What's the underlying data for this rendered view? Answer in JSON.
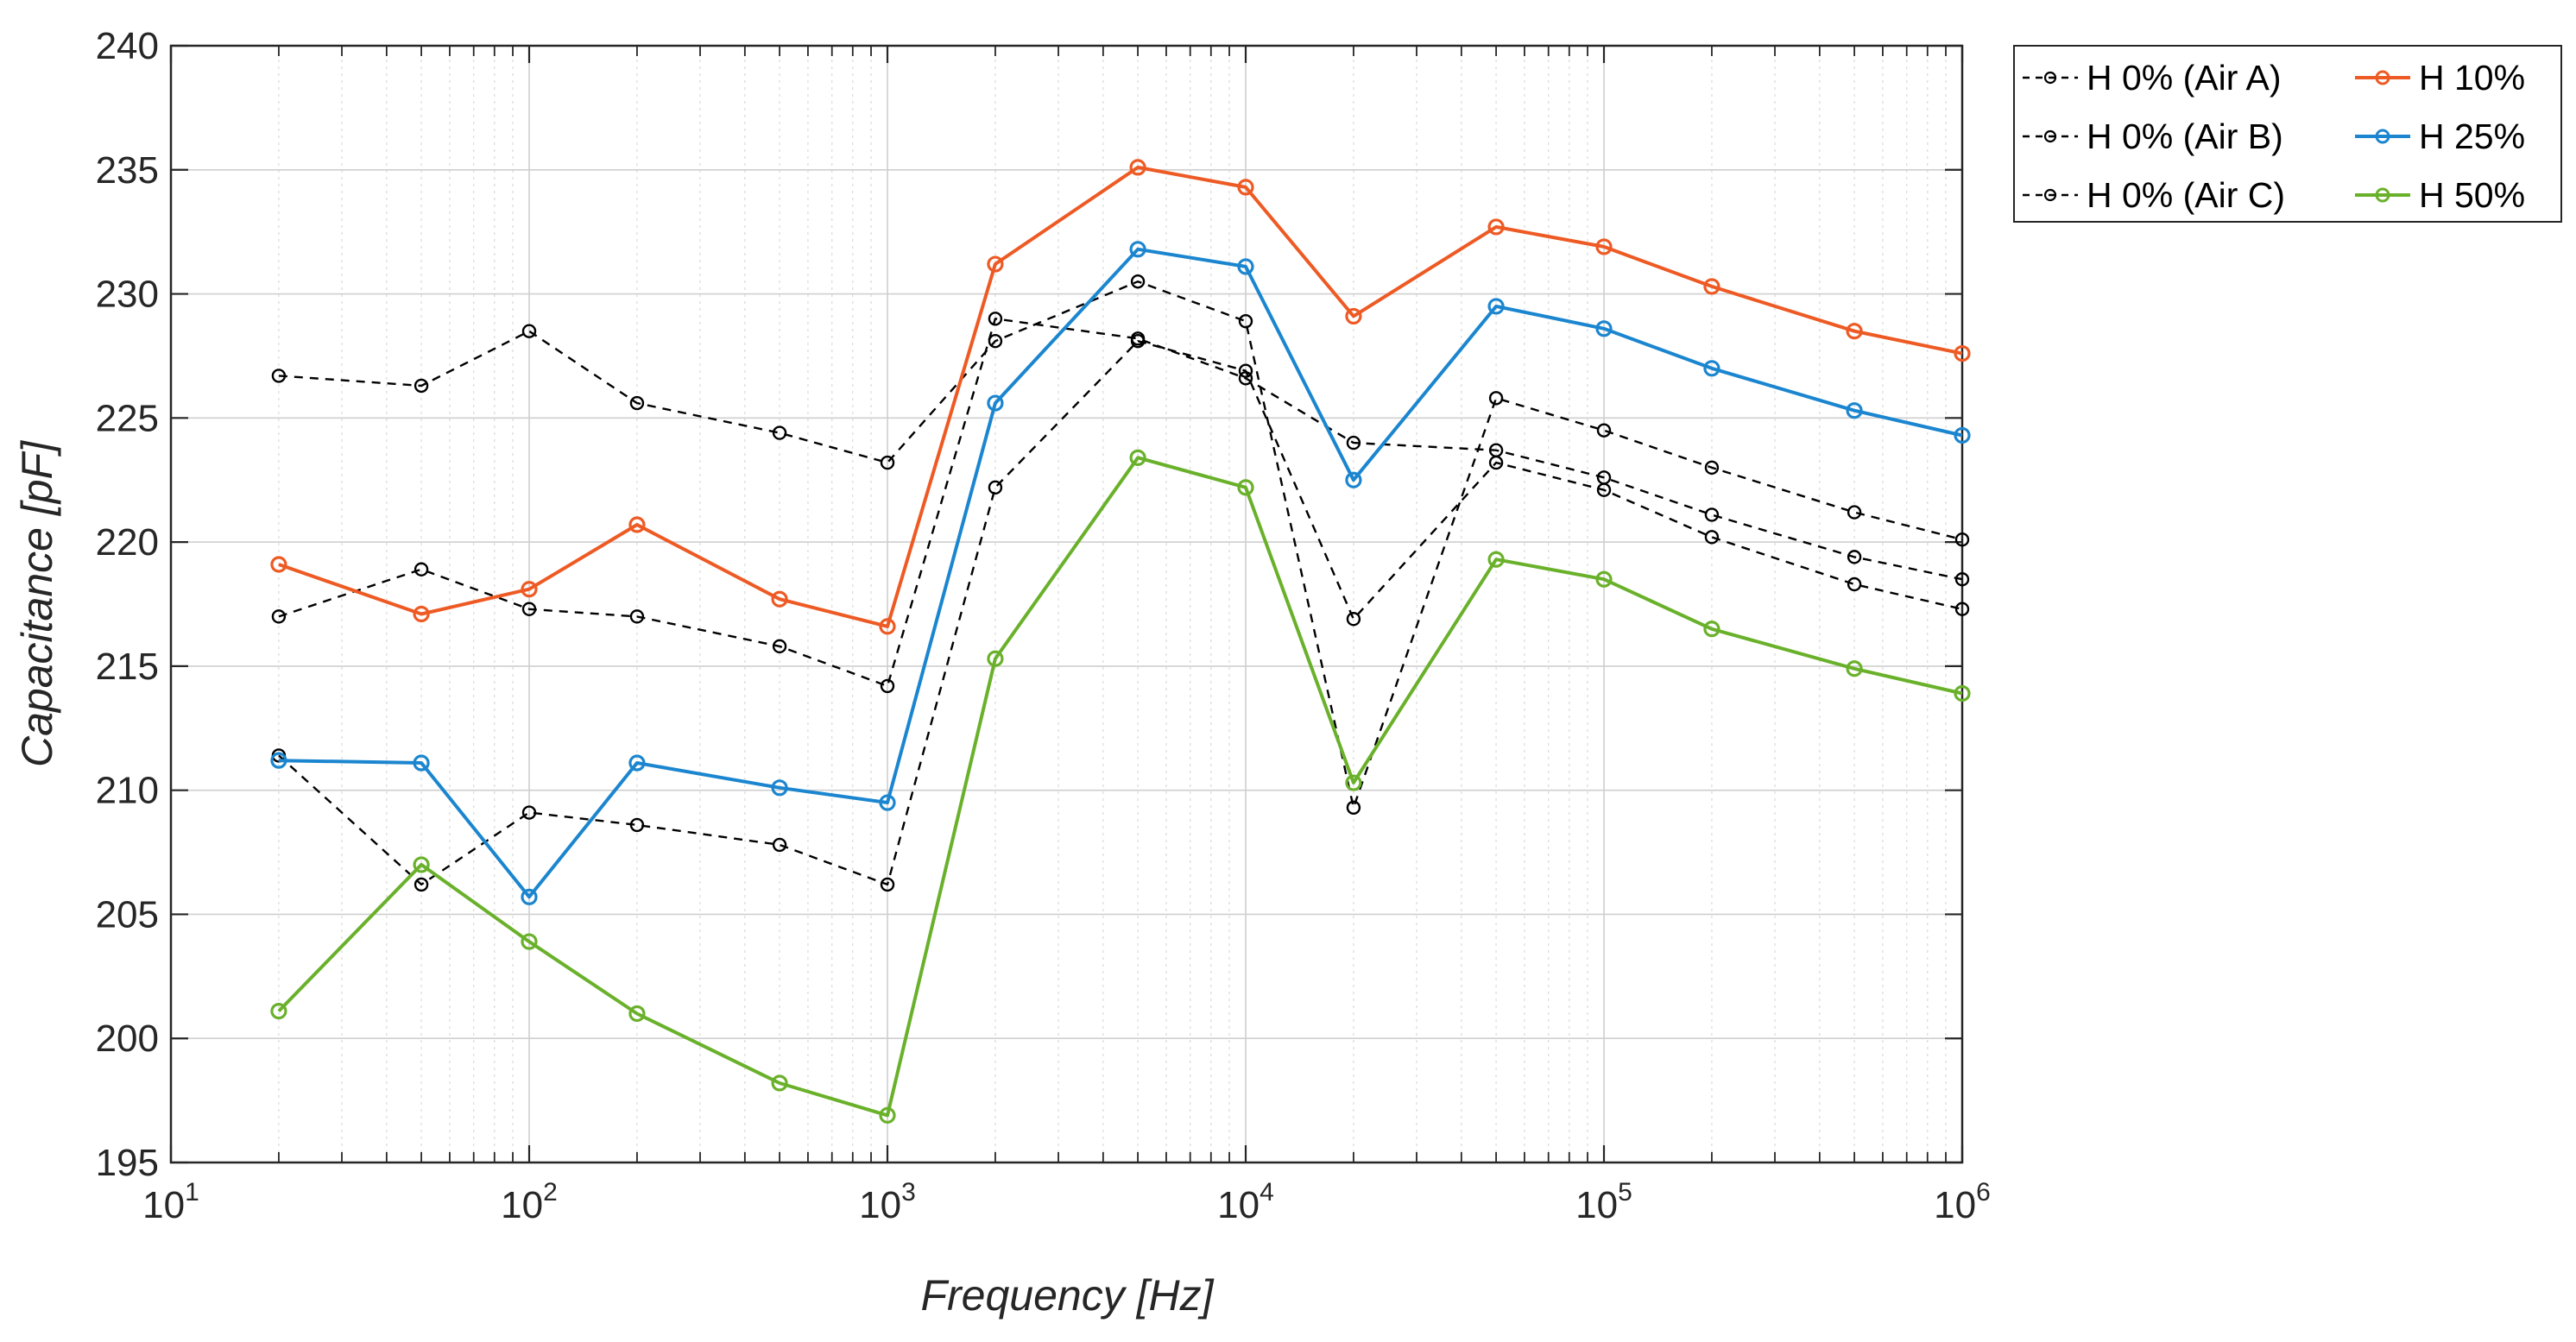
{
  "chart_data": {
    "type": "line",
    "title": "",
    "xlabel": "Frequency [Hz]",
    "ylabel": "Capacitance [pF]",
    "xscale": "log",
    "xlim": [
      10,
      1000000
    ],
    "ylim": [
      195,
      240
    ],
    "grid": true,
    "legend_position": "outside-top-right",
    "x_ticks": [
      {
        "base": "10",
        "exp": "1",
        "value": 10
      },
      {
        "base": "10",
        "exp": "2",
        "value": 100
      },
      {
        "base": "10",
        "exp": "3",
        "value": 1000
      },
      {
        "base": "10",
        "exp": "4",
        "value": 10000
      },
      {
        "base": "10",
        "exp": "5",
        "value": 100000
      },
      {
        "base": "10",
        "exp": "6",
        "value": 1000000
      }
    ],
    "y_ticks": [
      "195",
      "200",
      "205",
      "210",
      "215",
      "220",
      "225",
      "230",
      "235",
      "240"
    ],
    "x": [
      20,
      50,
      100,
      200,
      500,
      1000,
      2000,
      5000,
      10000,
      20000,
      50000,
      100000,
      200000,
      500000,
      1000000
    ],
    "series": [
      {
        "name": "H 0% (Air A)",
        "color": "#000000",
        "style": "dashed",
        "values": [
          217.0,
          218.9,
          217.3,
          217.0,
          215.8,
          214.2,
          229.0,
          228.2,
          226.6,
          224.0,
          223.7,
          222.6,
          221.1,
          219.4,
          218.5
        ]
      },
      {
        "name": "H 0% (Air B)",
        "color": "#000000",
        "style": "dashed",
        "values": [
          211.4,
          206.2,
          209.1,
          208.6,
          207.8,
          206.2,
          222.2,
          228.1,
          226.9,
          216.9,
          223.2,
          222.1,
          220.2,
          218.3,
          217.3
        ]
      },
      {
        "name": "H 0% (Air C)",
        "color": "#000000",
        "style": "dashed",
        "values": [
          226.7,
          226.3,
          228.5,
          225.6,
          224.4,
          223.2,
          228.1,
          230.5,
          228.9,
          209.3,
          225.8,
          224.5,
          223.0,
          221.2,
          220.1
        ]
      },
      {
        "name": "H 10%",
        "color": "#EE5A24",
        "style": "solid",
        "values": [
          219.1,
          217.1,
          218.1,
          220.7,
          217.7,
          216.6,
          231.2,
          235.1,
          234.3,
          229.1,
          232.7,
          231.9,
          230.3,
          228.5,
          227.6
        ]
      },
      {
        "name": "H 25%",
        "color": "#1B86CF",
        "style": "solid",
        "values": [
          211.2,
          211.1,
          205.7,
          211.1,
          210.1,
          209.5,
          225.6,
          231.8,
          231.1,
          222.5,
          229.5,
          228.6,
          227.0,
          225.3,
          224.3
        ]
      },
      {
        "name": "H 50%",
        "color": "#6AB12B",
        "style": "solid",
        "values": [
          201.1,
          207.0,
          203.9,
          201.0,
          198.2,
          196.9,
          215.3,
          223.4,
          222.2,
          210.3,
          219.3,
          218.5,
          216.5,
          214.9,
          213.9
        ]
      }
    ]
  }
}
